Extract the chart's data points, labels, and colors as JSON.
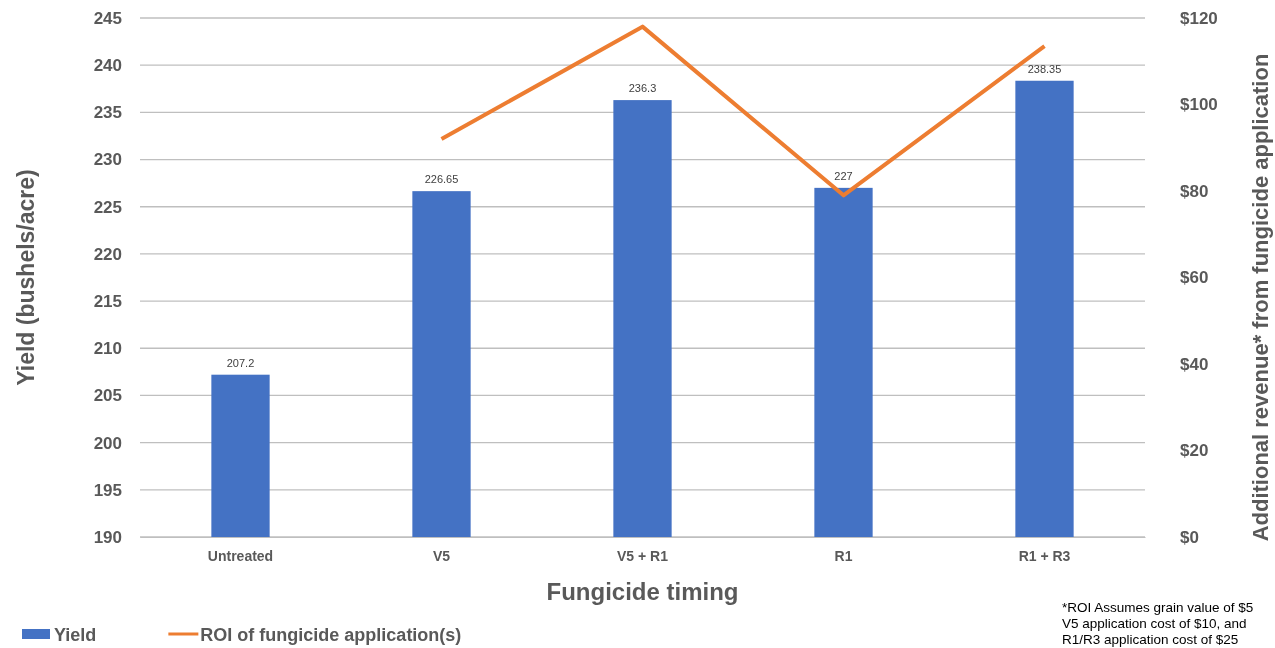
{
  "chart_data": {
    "type": "bar",
    "categories": [
      "Untreated",
      "V5",
      "V5 + R1",
      "R1",
      "R1 + R3"
    ],
    "series": [
      {
        "name": "Yield",
        "color": "#4472c4",
        "values": [
          207.2,
          226.65,
          236.3,
          227,
          238.35
        ],
        "value_labels": [
          "207.2",
          "226.65",
          "236.3",
          "227",
          "238.35"
        ]
      },
      {
        "name": "ROI of fungicide application(s)",
        "type": "line",
        "axis": "y2",
        "color": "#ed7d31",
        "values": [
          null,
          92,
          118,
          79,
          113.5
        ]
      }
    ],
    "xlabel": "Fungicide timing",
    "ylabel": "Yield (bushels/acre)",
    "y2label": "Additional revenue* from fungicide application",
    "ylim": [
      190,
      245
    ],
    "yticks": [
      190,
      195,
      200,
      205,
      210,
      215,
      220,
      225,
      230,
      235,
      240,
      245
    ],
    "y2lim": [
      0,
      120
    ],
    "y2ticks": [
      {
        "value": 0,
        "label": "$0"
      },
      {
        "value": 20,
        "label": "$20"
      },
      {
        "value": 40,
        "label": "$40"
      },
      {
        "value": 60,
        "label": "$60"
      },
      {
        "value": 80,
        "label": "$80"
      },
      {
        "value": 100,
        "label": "$100"
      },
      {
        "value": 120,
        "label": "$120"
      }
    ],
    "grid": "y",
    "legend": "bottom left",
    "marker": "none",
    "line_style": "solid",
    "annotations": [
      "*ROI Assumes grain value of $5",
      "V5 application cost of $10, and",
      "R1/R3 application cost of $25"
    ]
  }
}
